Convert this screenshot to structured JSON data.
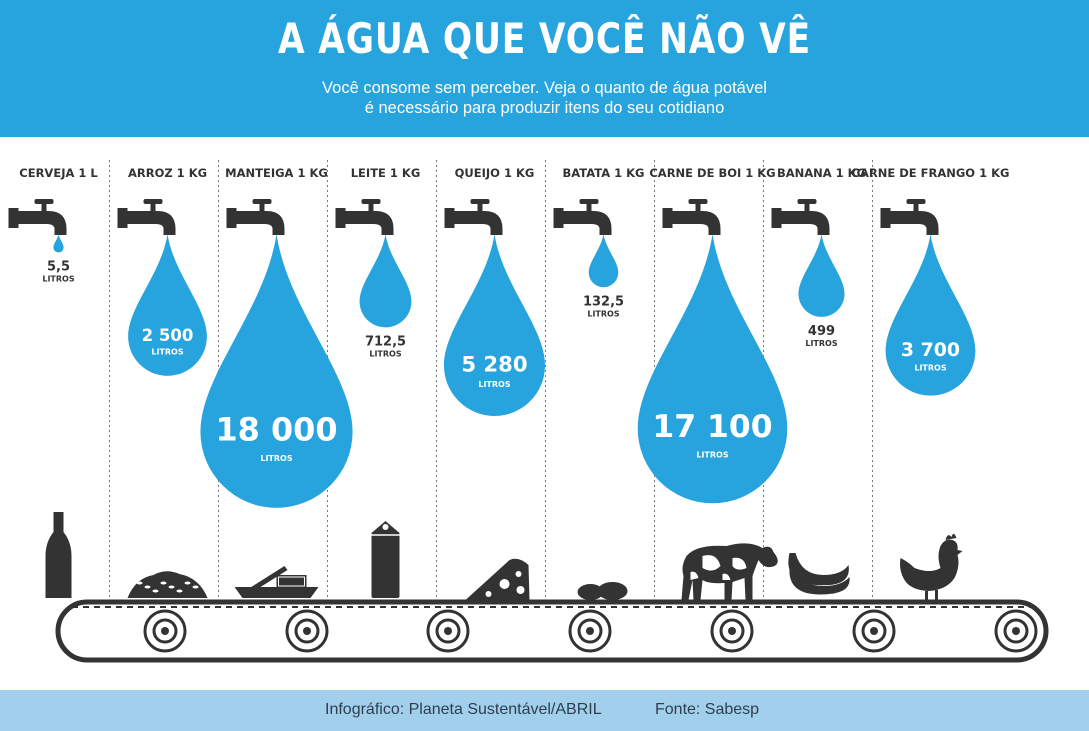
{
  "title": "A ÁGUA QUE VOCÊ NÃO VÊ",
  "subtitle": {
    "line1": "Você consome sem perceber. Veja o quanto de água potável",
    "line2": "é necessário para produzir itens do seu cotidiano"
  },
  "chart_data": {
    "type": "bar",
    "unit": "LITROS",
    "categories": [
      "CERVEJA 1 L",
      "ARROZ 1 KG",
      "MANTEIGA 1 KG",
      "LEITE 1 KG",
      "QUEIJO 1 KG",
      "BATATA 1 KG",
      "CARNE DE BOI 1 KG",
      "BANANA 1 KG",
      "CARNE DE FRANGO 1 KG"
    ],
    "values": [
      5.5,
      2500,
      18000,
      712.5,
      5280,
      132.5,
      17100,
      499,
      3700
    ],
    "value_labels": [
      "5,5",
      "2 500",
      "18 000",
      "712,5",
      "5 280",
      "132,5",
      "17 100",
      "499",
      "3 700"
    ],
    "icons": [
      "beer-bottle-icon",
      "rice-icon",
      "butter-icon",
      "milk-carton-icon",
      "cheese-icon",
      "potato-icon",
      "cow-icon",
      "banana-icon",
      "chicken-icon"
    ]
  },
  "colors": {
    "water": "#27a3dd",
    "header": "#27a3dd",
    "footer": "#a2cfec",
    "dark": "#333333"
  },
  "footer": {
    "credit": "Infográfico: Planeta Sustentável/ABRIL",
    "source": "Fonte: Sabesp"
  }
}
